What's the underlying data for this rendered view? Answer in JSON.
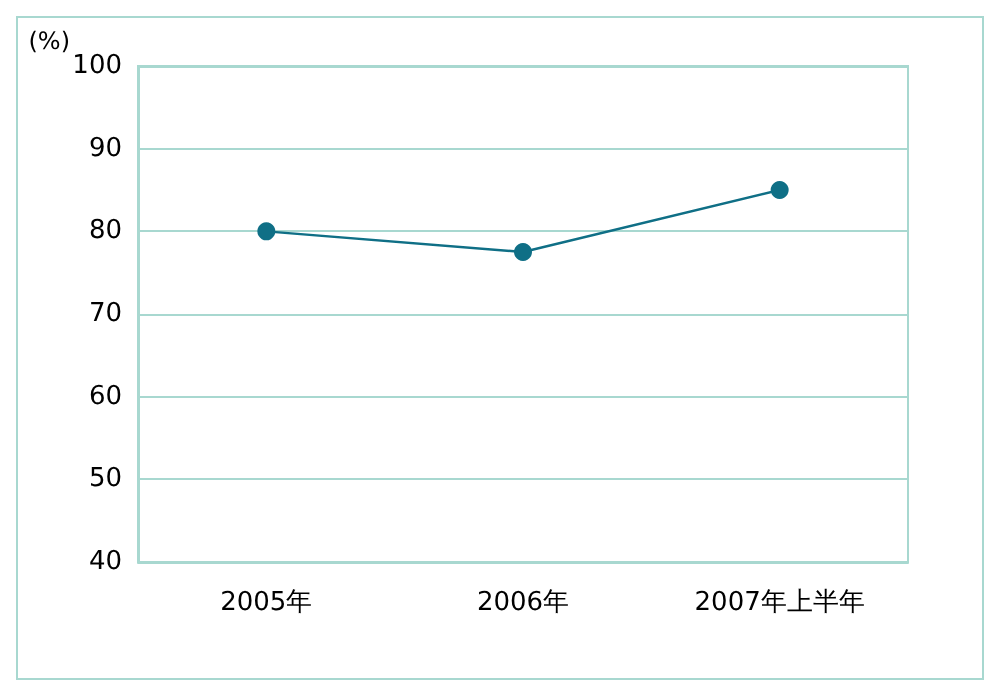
{
  "chart_data": {
    "type": "line",
    "ylabel": "(%)",
    "categories": [
      "2005年",
      "2006年",
      "2007年上半年"
    ],
    "series": [
      {
        "color": "#0f6f86",
        "values": [
          80,
          77.5,
          85
        ]
      }
    ],
    "ylim": [
      40,
      100
    ],
    "yticks": [
      40,
      50,
      60,
      70,
      80,
      90,
      100
    ],
    "grid": "y",
    "marker": "circle",
    "line_style": "solid"
  }
}
